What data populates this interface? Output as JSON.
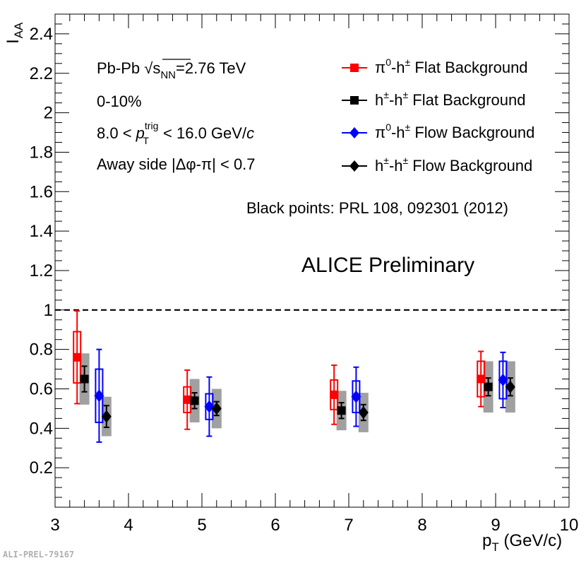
{
  "chart_data": {
    "type": "scatter",
    "ylabel": "I",
    "ylabel_sub": "AA",
    "xlabel": "p",
    "xlabel_sub": "T",
    "xlabel_unit": " (GeV/c)",
    "xlim": [
      3,
      10
    ],
    "ylim": [
      0,
      2.5
    ],
    "x_ticks": [
      "3",
      "4",
      "5",
      "6",
      "7",
      "8",
      "9",
      "10"
    ],
    "y_ticks": [
      "0.2",
      "0.4",
      "0.6",
      "0.8",
      "1",
      "1.2",
      "1.4",
      "1.6",
      "1.8",
      "2",
      "2.2",
      "2.4"
    ],
    "reference_line": 1.0,
    "series": [
      {
        "name": "π0-h± Flat Background",
        "color": "#ff0000",
        "marker": "square",
        "syst_style": "open",
        "x": [
          3.3,
          4.8,
          6.8,
          8.8
        ],
        "y": [
          0.76,
          0.545,
          0.57,
          0.65
        ],
        "stat_err": [
          0.235,
          0.15,
          0.15,
          0.14
        ],
        "syst_err": [
          0.13,
          0.065,
          0.075,
          0.09
        ]
      },
      {
        "name": "h±-h± Flat Background",
        "color": "#000000",
        "marker": "square",
        "syst_style": "gray",
        "x": [
          3.4,
          4.9,
          6.9,
          8.9
        ],
        "y": [
          0.65,
          0.54,
          0.49,
          0.61
        ],
        "stat_err": [
          0.065,
          0.04,
          0.04,
          0.045
        ],
        "syst_err": [
          0.13,
          0.11,
          0.1,
          0.13
        ]
      },
      {
        "name": "π0-h± Flow Background",
        "color": "#0000ff",
        "marker": "diamond",
        "syst_style": "open",
        "x": [
          3.6,
          5.1,
          7.1,
          9.1
        ],
        "y": [
          0.565,
          0.51,
          0.56,
          0.645
        ],
        "stat_err": [
          0.235,
          0.15,
          0.15,
          0.14
        ],
        "syst_err": [
          0.135,
          0.065,
          0.08,
          0.095
        ]
      },
      {
        "name": "h±-h± Flow Background",
        "color": "#000000",
        "marker": "diamond",
        "syst_style": "gray",
        "x": [
          3.7,
          5.2,
          7.2,
          9.2
        ],
        "y": [
          0.46,
          0.5,
          0.48,
          0.61
        ],
        "stat_err": [
          0.055,
          0.035,
          0.04,
          0.045
        ],
        "syst_err": [
          0.1,
          0.1,
          0.1,
          0.13
        ]
      }
    ],
    "legend": [
      {
        "base": "π",
        "sup1": "0",
        "mid": "-h",
        "sup2": "±",
        "rest": " Flat Background"
      },
      {
        "base": "h",
        "sup1": "±",
        "mid": "-h",
        "sup2": "±",
        "rest": " Flat Background"
      },
      {
        "base": "π",
        "sup1": "0",
        "mid": "-h",
        "sup2": "±",
        "rest": " Flow Background"
      },
      {
        "base": "h",
        "sup1": "±",
        "mid": "-h",
        "sup2": "±",
        "rest": " Flow Background"
      }
    ],
    "annotations": {
      "collision_a": "Pb-Pb ",
      "sqrt": "√",
      "s": "s",
      "s_sub": "NN",
      "energy": "=2.76 TeV",
      "centrality": "0-10%",
      "trig_a": "8.0 < ",
      "trig_p": "p",
      "trig_sup": "trig",
      "trig_sub": "T",
      "trig_b": " < 16.0 GeV/",
      "trig_c": "c",
      "away_side": "Away side |Δφ-π| < 0.7",
      "reference": "Black points: PRL 108, 092301 (2012)",
      "preliminary": "ALICE Preliminary"
    }
  },
  "watermark": "ALI-PREL-79167"
}
